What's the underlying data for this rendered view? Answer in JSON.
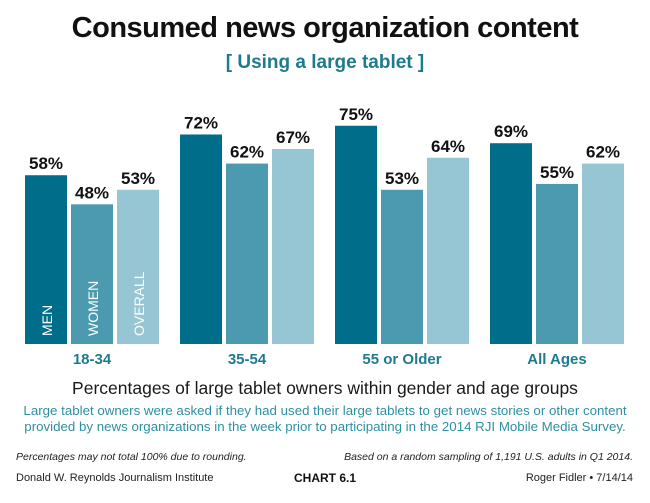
{
  "header": {
    "title": "Consumed news organization content",
    "subtitle": "[ Using a large tablet ]"
  },
  "chart_data": {
    "type": "bar",
    "title": "Consumed news organization content",
    "subtitle": "[ Using a large tablet ]",
    "xlabel": "",
    "ylabel": "",
    "ylim": [
      0,
      80
    ],
    "grid": false,
    "categories": [
      "18-34",
      "35-54",
      "55 or Older",
      "All Ages"
    ],
    "series": [
      {
        "name": "MEN",
        "color": "#006d8a",
        "values": [
          58,
          72,
          75,
          69
        ]
      },
      {
        "name": "WOMEN",
        "color": "#4b9ab0",
        "values": [
          48,
          62,
          53,
          55
        ]
      },
      {
        "name": "OVERALL",
        "color": "#96c5d3",
        "values": [
          53,
          67,
          64,
          62
        ]
      }
    ],
    "value_suffix": "%",
    "legend": "inside-first-group-bars",
    "category_label_color": "#1e7b8f"
  },
  "caption": "Percentages of large tablet owners within gender and age groups",
  "description": "Large tablet owners were asked if they had used their large tablets to get news stories or other content provided by news organizations in the week prior to participating in the 2014 RJI Mobile Media Survey.",
  "notes": {
    "left": "Percentages may not total 100% due to rounding.",
    "right": "Based on a random sampling of 1,191 U.S. adults in Q1 2014."
  },
  "footer": {
    "left": "Donald W. Reynolds Journalism Institute",
    "center": "CHART 6.1",
    "right": "Roger Fidler • 7/14/14"
  }
}
